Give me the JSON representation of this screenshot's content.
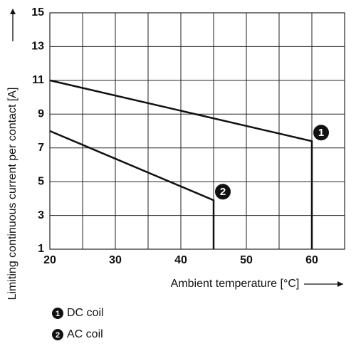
{
  "chart_data": {
    "type": "line",
    "x_label": "Ambient temperature [°C]",
    "y_label": "Limiting continuous current per contact [A]",
    "xlim": [
      20,
      65
    ],
    "xticks": [
      20,
      30,
      40,
      50,
      60
    ],
    "x_minor_grid": [
      25,
      35,
      45,
      55,
      65
    ],
    "ylim": [
      1,
      15
    ],
    "yticks": [
      1,
      3,
      5,
      7,
      9,
      11,
      13,
      15
    ],
    "grid": true,
    "series": [
      {
        "name": "DC coil",
        "marker_label": "1",
        "color": "#111111",
        "x": [
          20,
          60,
          60
        ],
        "values": [
          11,
          7.4,
          1
        ]
      },
      {
        "name": "AC coil",
        "marker_label": "2",
        "color": "#111111",
        "x": [
          20,
          45,
          45
        ],
        "values": [
          8,
          3.9,
          1
        ]
      }
    ]
  }
}
